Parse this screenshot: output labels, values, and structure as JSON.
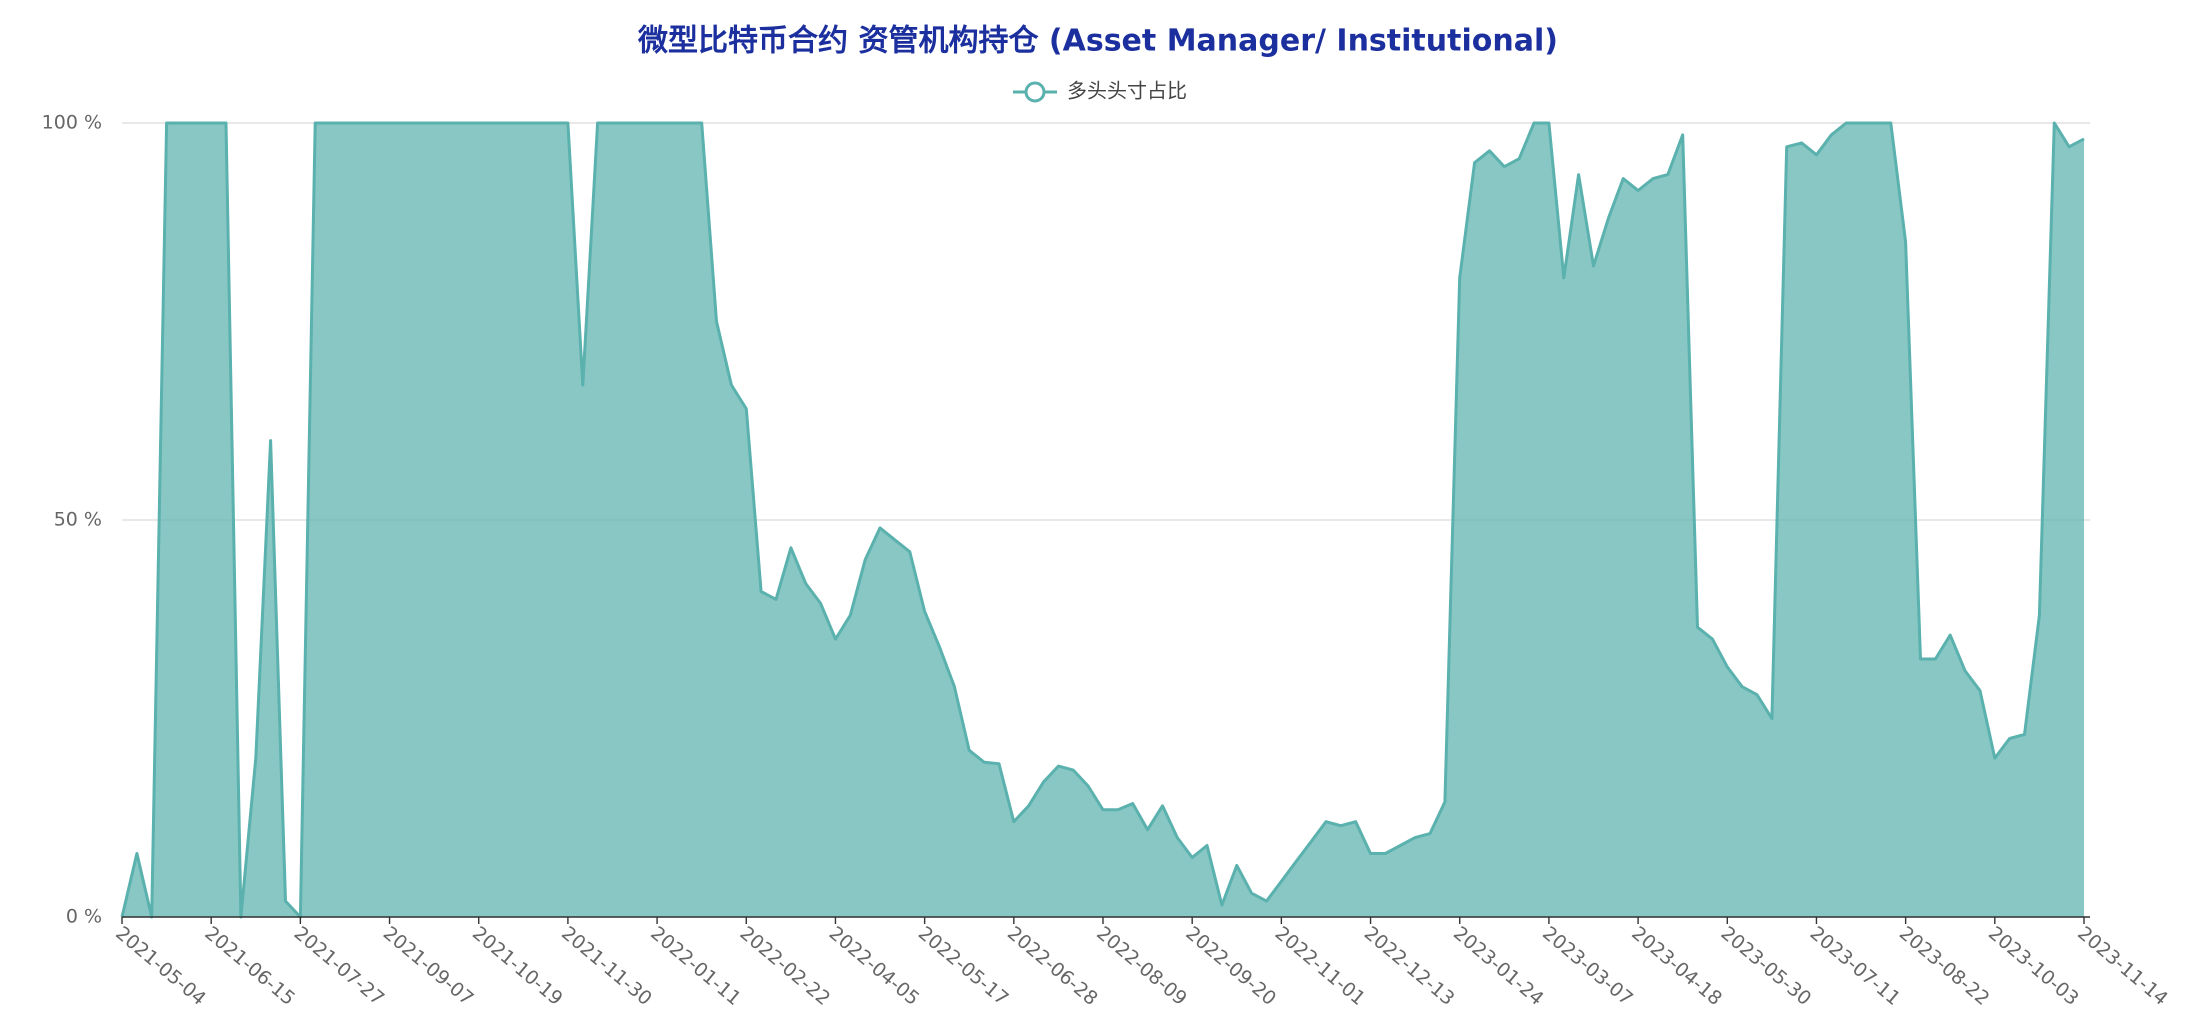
{
  "chart_data": {
    "type": "area",
    "title": "微型比特币合约 资管机构持仓 (Asset Manager/ Institutional)",
    "legend": "top",
    "grid": true,
    "categories": [
      "2021-05-04",
      null,
      null,
      null,
      null,
      null,
      "2021-06-15",
      null,
      null,
      null,
      null,
      null,
      "2021-07-27",
      null,
      null,
      null,
      null,
      null,
      "2021-09-07",
      null,
      null,
      null,
      null,
      null,
      "2021-10-19",
      null,
      null,
      null,
      null,
      null,
      "2021-11-30",
      null,
      null,
      null,
      null,
      null,
      "2022-01-11",
      null,
      null,
      null,
      null,
      null,
      "2022-02-22",
      null,
      null,
      null,
      null,
      null,
      "2022-04-05",
      null,
      null,
      null,
      null,
      null,
      "2022-05-17",
      null,
      null,
      null,
      null,
      null,
      "2022-06-28",
      null,
      null,
      null,
      null,
      null,
      "2022-08-09",
      null,
      null,
      null,
      null,
      null,
      "2022-09-20",
      null,
      null,
      null,
      null,
      null,
      "2022-11-01",
      null,
      null,
      null,
      null,
      null,
      "2022-12-13",
      null,
      null,
      null,
      null,
      null,
      "2023-01-24",
      null,
      null,
      null,
      null,
      null,
      "2023-03-07",
      null,
      null,
      null,
      null,
      null,
      "2023-04-18",
      null,
      null,
      null,
      null,
      null,
      "2023-05-30",
      null,
      null,
      null,
      null,
      null,
      "2023-07-11",
      null,
      null,
      null,
      null,
      null,
      "2023-08-22",
      null,
      null,
      null,
      null,
      null,
      "2023-10-03",
      null,
      null,
      null,
      null,
      null,
      "2023-11-14"
    ],
    "series": [
      {
        "name": "多头头寸占比",
        "color": "#5ab1ad",
        "values": [
          0,
          8,
          0,
          100,
          100,
          100,
          100,
          100,
          0,
          20,
          60,
          2,
          0,
          100,
          100,
          100,
          100,
          100,
          100,
          100,
          100,
          100,
          100,
          100,
          100,
          100,
          100,
          100,
          100,
          100,
          100,
          67,
          100,
          100,
          100,
          100,
          100,
          100,
          100,
          100,
          75,
          67,
          64,
          41,
          40,
          46.5,
          42,
          39.5,
          35,
          38,
          45,
          49,
          47.5,
          46,
          38.5,
          34,
          29,
          21,
          19.5,
          19.3,
          12,
          14,
          17,
          19,
          18.5,
          16.5,
          13.5,
          13.5,
          14.3,
          11,
          14,
          10,
          7.5,
          9,
          1.5,
          6.5,
          3,
          2,
          4.5,
          7,
          9.5,
          12,
          11.5,
          12,
          8,
          8,
          9,
          10,
          10.5,
          14.5,
          80.5,
          95,
          96.5,
          94.5,
          95.5,
          100,
          100,
          80.5,
          93.5,
          82,
          88,
          93,
          91.5,
          93,
          93.5,
          98.5,
          36.5,
          35,
          31.5,
          29,
          28,
          25,
          97,
          97.5,
          96,
          98.5,
          100,
          100,
          100,
          100,
          85,
          32.5,
          32.5,
          35.5,
          31,
          28.5,
          20,
          22.5,
          23,
          38,
          100,
          97,
          98
        ]
      }
    ],
    "ylim": [
      0,
      100
    ],
    "yticks": [
      {
        "value": 0,
        "label": "0 %"
      },
      {
        "value": 50,
        "label": "50 %"
      },
      {
        "value": 100,
        "label": "100 %"
      }
    ]
  }
}
